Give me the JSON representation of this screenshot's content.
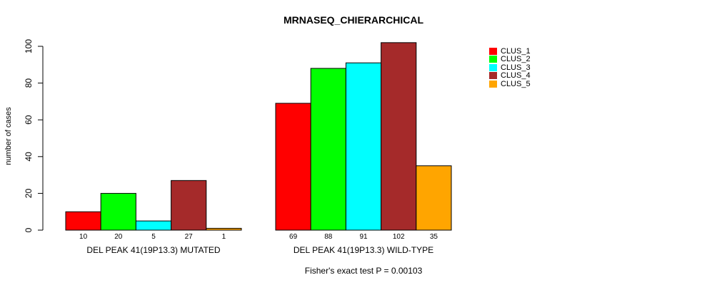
{
  "chart_data": {
    "type": "bar",
    "title": "MRNASEQ_CHIERARCHICAL",
    "ylabel": "number of cases",
    "xlabel": "",
    "ylim": [
      0,
      100
    ],
    "yticks": [
      0,
      20,
      40,
      60,
      80,
      100
    ],
    "groups": [
      {
        "label": "DEL PEAK 41(19P13.3) MUTATED",
        "values": [
          10,
          20,
          5,
          27,
          1
        ],
        "value_labels": [
          "10",
          "20",
          "5",
          "27",
          "1"
        ]
      },
      {
        "label": "DEL PEAK 41(19P13.3) WILD-TYPE",
        "values": [
          69,
          88,
          91,
          102,
          35
        ],
        "value_labels": [
          "69",
          "88",
          "91",
          "102",
          "35"
        ]
      }
    ],
    "series": [
      {
        "name": "CLUS_1",
        "color": "#ff0000"
      },
      {
        "name": "CLUS_2",
        "color": "#00ff00"
      },
      {
        "name": "CLUS_3",
        "color": "#00ffff"
      },
      {
        "name": "CLUS_4",
        "color": "#a52a2a"
      },
      {
        "name": "CLUS_5",
        "color": "#ffa500"
      }
    ],
    "legend_position": "top-right",
    "footnote": "Fisher's exact test P = 0.00103"
  }
}
